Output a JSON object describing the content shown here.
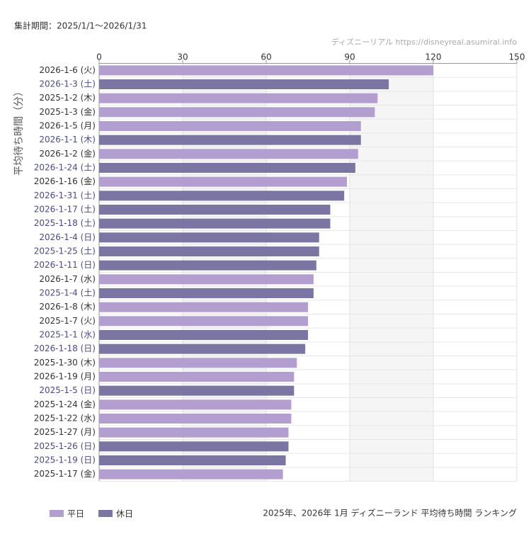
{
  "chart_data": {
    "type": "bar",
    "orientation": "horizontal",
    "title": "2025年、2026年 1月 ディズニーランド 平均待ち時間 ランキング",
    "period": "集計期間：2025/1/1〜2026/1/31",
    "source": "ディズニーリアル https://disneyreal.asumirai.info",
    "y_label": "平均待ち時間（分）",
    "categories": [
      "2026-1-6 (火)",
      "2026-1-3 (土)",
      "2025-1-2 (木)",
      "2025-1-3 (金)",
      "2026-1-5 (月)",
      "2026-1-1 (木)",
      "2026-1-2 (金)",
      "2026-1-24 (土)",
      "2026-1-16 (金)",
      "2026-1-31 (土)",
      "2026-1-17 (土)",
      "2025-1-18 (土)",
      "2026-1-4 (日)",
      "2025-1-25 (土)",
      "2026-1-11 (日)",
      "2026-1-7 (水)",
      "2025-1-4 (土)",
      "2026-1-8 (木)",
      "2025-1-7 (火)",
      "2025-1-1 (水)",
      "2026-1-18 (日)",
      "2025-1-30 (木)",
      "2026-1-19 (月)",
      "2025-1-5 (日)",
      "2025-1-24 (金)",
      "2025-1-22 (水)",
      "2025-1-27 (月)",
      "2025-1-26 (日)",
      "2025-1-19 (日)",
      "2025-1-17 (金)"
    ],
    "series": [
      {
        "name": "平日",
        "color": "#b39fcf",
        "label_color": "#333333",
        "values": [
          120,
          null,
          100,
          99,
          94,
          null,
          93,
          null,
          89,
          null,
          null,
          null,
          null,
          null,
          null,
          77,
          null,
          75,
          75,
          null,
          null,
          71,
          70,
          null,
          69,
          69,
          68,
          null,
          null,
          66
        ]
      },
      {
        "name": "休日",
        "color": "#7b75a3",
        "label_color": "#4a4a8a",
        "values": [
          null,
          104,
          null,
          null,
          null,
          94,
          null,
          92,
          null,
          88,
          83,
          83,
          79,
          79,
          78,
          null,
          77,
          null,
          null,
          75,
          74,
          null,
          null,
          70,
          null,
          null,
          null,
          68,
          67,
          null
        ]
      }
    ],
    "xlim": [
      0,
      150
    ],
    "xticks": [
      0,
      30,
      60,
      90,
      120,
      150
    ],
    "grid": true,
    "legend": "bottom-left"
  }
}
